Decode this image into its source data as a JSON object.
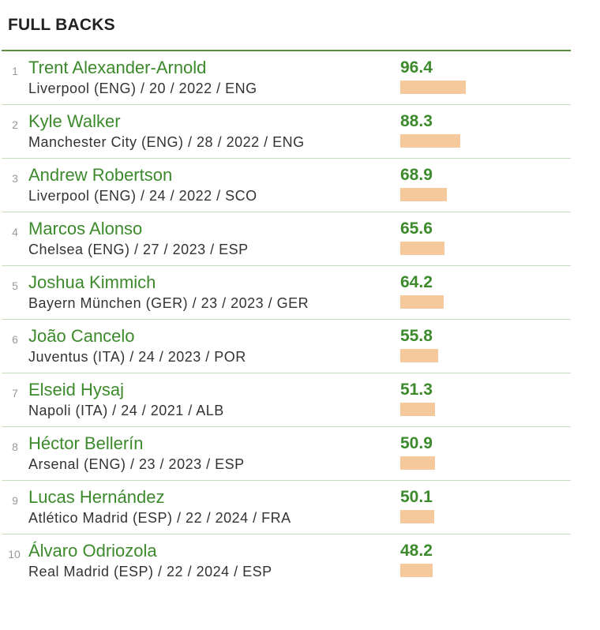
{
  "title": "FULL BACKS",
  "max_score": 100,
  "colors": {
    "accent_green": "#3c8a2c",
    "bar": "#f5c99b",
    "divider": "#c9ddc0"
  },
  "players": [
    {
      "rank": "1",
      "name": "Trent Alexander-Arnold",
      "details": "Liverpool (ENG) / 20 / 2022 / ENG",
      "score": "96.4"
    },
    {
      "rank": "2",
      "name": "Kyle Walker",
      "details": "Manchester City (ENG) / 28 / 2022 / ENG",
      "score": "88.3"
    },
    {
      "rank": "3",
      "name": "Andrew Robertson",
      "details": "Liverpool (ENG) / 24 / 2022 / SCO",
      "score": "68.9"
    },
    {
      "rank": "4",
      "name": "Marcos Alonso",
      "details": "Chelsea (ENG) / 27 / 2023 / ESP",
      "score": "65.6"
    },
    {
      "rank": "5",
      "name": "Joshua Kimmich",
      "details": "Bayern München (GER) / 23 / 2023 / GER",
      "score": "64.2"
    },
    {
      "rank": "6",
      "name": "João Cancelo",
      "details": "Juventus (ITA) / 24 / 2023 / POR",
      "score": "55.8"
    },
    {
      "rank": "7",
      "name": "Elseid Hysaj",
      "details": "Napoli (ITA) / 24 / 2021 / ALB",
      "score": "51.3"
    },
    {
      "rank": "8",
      "name": "Héctor Bellerín",
      "details": "Arsenal (ENG) / 23 / 2023 / ESP",
      "score": "50.9"
    },
    {
      "rank": "9",
      "name": "Lucas Hernández",
      "details": "Atlético Madrid (ESP) / 22 / 2024 / FRA",
      "score": "50.1"
    },
    {
      "rank": "10",
      "name": "Álvaro Odriozola",
      "details": "Real Madrid (ESP) / 22 / 2024 / ESP",
      "score": "48.2"
    }
  ]
}
